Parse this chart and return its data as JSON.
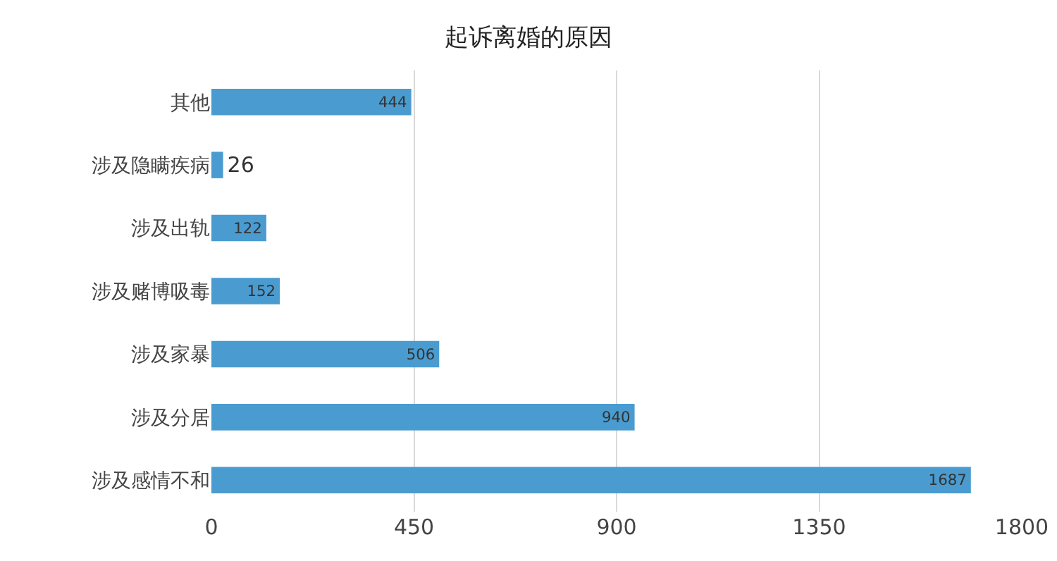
{
  "chart_data": {
    "type": "bar",
    "title": "起诉离婚的原因",
    "orientation": "horizontal",
    "categories": [
      "其他",
      "涉及隐瞒疾病",
      "涉及出轨",
      "涉及赌博吸毒",
      "涉及家暴",
      "涉及分居",
      "涉及感情不和"
    ],
    "values": [
      444,
      26,
      122,
      152,
      506,
      940,
      1687
    ],
    "color": "#4a9bd0",
    "xlim": [
      0,
      1800
    ],
    "xticks": [
      0,
      450,
      900,
      1350,
      1800
    ],
    "grid": "x",
    "data_labels": true,
    "legend": false
  }
}
